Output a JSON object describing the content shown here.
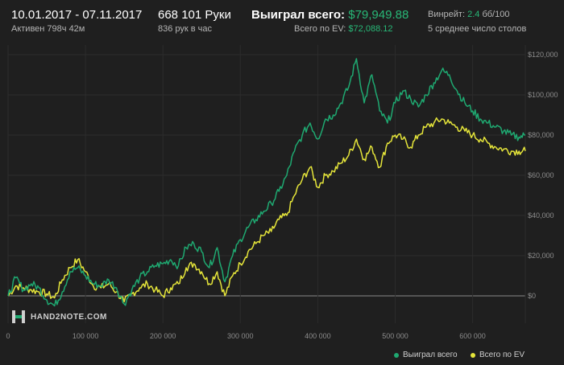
{
  "header": {
    "date_range": "10.01.2017 - 07.11.2017",
    "active": "Активен 798ч 42м",
    "hands": "668 101 Руки",
    "hands_per_hour": "836 рук в час",
    "won_label": "Выиграл всего:",
    "won_value": "$79,949.88",
    "ev_label": "Всего по EV:",
    "ev_value": "$72,088.12",
    "winrate_label": "Винрейт:",
    "winrate_value": "2.4",
    "winrate_unit": "бб/100",
    "tables": "5 среднее число столов"
  },
  "logo": {
    "text": "HAND2NOTE.COM"
  },
  "colors": {
    "won": "#1fa971",
    "ev": "#e5e53a",
    "background": "#1f1f1f",
    "grid": "#2c2c2c",
    "zero": "#8a8a8a"
  },
  "chart_data": {
    "type": "line",
    "x_ticks": [
      "0",
      "100 000",
      "200 000",
      "300 000",
      "400 000",
      "500 000",
      "600 000"
    ],
    "x_tick_values": [
      0,
      100000,
      200000,
      300000,
      400000,
      500000,
      600000
    ],
    "y_ticks": [
      "$0",
      "$20,000",
      "$40,000",
      "$60,000",
      "$80,000",
      "$100,000",
      "$120,000"
    ],
    "y_tick_values": [
      0,
      20000,
      40000,
      60000,
      80000,
      100000,
      120000
    ],
    "xlim": [
      0,
      668101
    ],
    "ylim": [
      -7000,
      123000
    ],
    "legend_position": "bottom-right",
    "series": [
      {
        "name": "Выиграл всего",
        "color": "#1fa971",
        "points": [
          [
            0,
            0
          ],
          [
            10000,
            9000
          ],
          [
            20000,
            3000
          ],
          [
            30000,
            6000
          ],
          [
            40000,
            4000
          ],
          [
            50000,
            -2000
          ],
          [
            60000,
            -5000
          ],
          [
            70000,
            2000
          ],
          [
            80000,
            12000
          ],
          [
            90000,
            14000
          ],
          [
            100000,
            10000
          ],
          [
            110000,
            6000
          ],
          [
            120000,
            5000
          ],
          [
            130000,
            8000
          ],
          [
            140000,
            4000
          ],
          [
            150000,
            -4000
          ],
          [
            160000,
            3000
          ],
          [
            170000,
            9000
          ],
          [
            180000,
            12000
          ],
          [
            190000,
            15000
          ],
          [
            200000,
            16000
          ],
          [
            210000,
            18000
          ],
          [
            220000,
            15000
          ],
          [
            230000,
            24000
          ],
          [
            240000,
            26000
          ],
          [
            250000,
            22000
          ],
          [
            260000,
            14000
          ],
          [
            270000,
            24000
          ],
          [
            280000,
            7000
          ],
          [
            290000,
            20000
          ],
          [
            300000,
            28000
          ],
          [
            310000,
            34000
          ],
          [
            320000,
            38000
          ],
          [
            330000,
            42000
          ],
          [
            340000,
            46000
          ],
          [
            350000,
            52000
          ],
          [
            360000,
            60000
          ],
          [
            370000,
            72000
          ],
          [
            380000,
            80000
          ],
          [
            390000,
            86000
          ],
          [
            400000,
            78000
          ],
          [
            410000,
            88000
          ],
          [
            420000,
            90000
          ],
          [
            430000,
            96000
          ],
          [
            440000,
            104000
          ],
          [
            450000,
            118000
          ],
          [
            460000,
            96000
          ],
          [
            470000,
            110000
          ],
          [
            480000,
            92000
          ],
          [
            490000,
            86000
          ],
          [
            500000,
            96000
          ],
          [
            510000,
            102000
          ],
          [
            520000,
            98000
          ],
          [
            530000,
            94000
          ],
          [
            540000,
            100000
          ],
          [
            550000,
            106000
          ],
          [
            560000,
            112000
          ],
          [
            570000,
            110000
          ],
          [
            580000,
            102000
          ],
          [
            590000,
            96000
          ],
          [
            600000,
            92000
          ],
          [
            610000,
            88000
          ],
          [
            620000,
            86000
          ],
          [
            630000,
            84000
          ],
          [
            640000,
            82000
          ],
          [
            650000,
            80000
          ],
          [
            660000,
            79000
          ],
          [
            668101,
            79950
          ]
        ]
      },
      {
        "name": "Всего по EV",
        "color": "#e5e53a",
        "points": [
          [
            0,
            0
          ],
          [
            10000,
            5000
          ],
          [
            20000,
            4000
          ],
          [
            30000,
            3000
          ],
          [
            40000,
            2000
          ],
          [
            50000,
            1000
          ],
          [
            60000,
            -1000
          ],
          [
            70000,
            8000
          ],
          [
            80000,
            14000
          ],
          [
            90000,
            18000
          ],
          [
            100000,
            12000
          ],
          [
            110000,
            5000
          ],
          [
            120000,
            4000
          ],
          [
            130000,
            6000
          ],
          [
            140000,
            2000
          ],
          [
            150000,
            -3000
          ],
          [
            160000,
            1000
          ],
          [
            170000,
            4000
          ],
          [
            180000,
            6000
          ],
          [
            190000,
            3000
          ],
          [
            200000,
            0
          ],
          [
            210000,
            4000
          ],
          [
            220000,
            6000
          ],
          [
            230000,
            14000
          ],
          [
            240000,
            16000
          ],
          [
            250000,
            12000
          ],
          [
            260000,
            6000
          ],
          [
            270000,
            12000
          ],
          [
            280000,
            0
          ],
          [
            290000,
            10000
          ],
          [
            300000,
            16000
          ],
          [
            310000,
            22000
          ],
          [
            320000,
            26000
          ],
          [
            330000,
            30000
          ],
          [
            340000,
            32000
          ],
          [
            350000,
            38000
          ],
          [
            360000,
            40000
          ],
          [
            370000,
            50000
          ],
          [
            380000,
            58000
          ],
          [
            390000,
            64000
          ],
          [
            400000,
            54000
          ],
          [
            410000,
            60000
          ],
          [
            420000,
            62000
          ],
          [
            430000,
            66000
          ],
          [
            440000,
            70000
          ],
          [
            450000,
            78000
          ],
          [
            460000,
            68000
          ],
          [
            470000,
            74000
          ],
          [
            480000,
            64000
          ],
          [
            490000,
            76000
          ],
          [
            500000,
            80000
          ],
          [
            510000,
            78000
          ],
          [
            520000,
            74000
          ],
          [
            530000,
            80000
          ],
          [
            540000,
            84000
          ],
          [
            550000,
            86000
          ],
          [
            560000,
            88000
          ],
          [
            570000,
            86000
          ],
          [
            580000,
            84000
          ],
          [
            590000,
            82000
          ],
          [
            600000,
            80000
          ],
          [
            610000,
            78000
          ],
          [
            620000,
            76000
          ],
          [
            630000,
            74000
          ],
          [
            640000,
            73000
          ],
          [
            650000,
            72000
          ],
          [
            660000,
            72000
          ],
          [
            668101,
            72088
          ]
        ]
      }
    ]
  }
}
